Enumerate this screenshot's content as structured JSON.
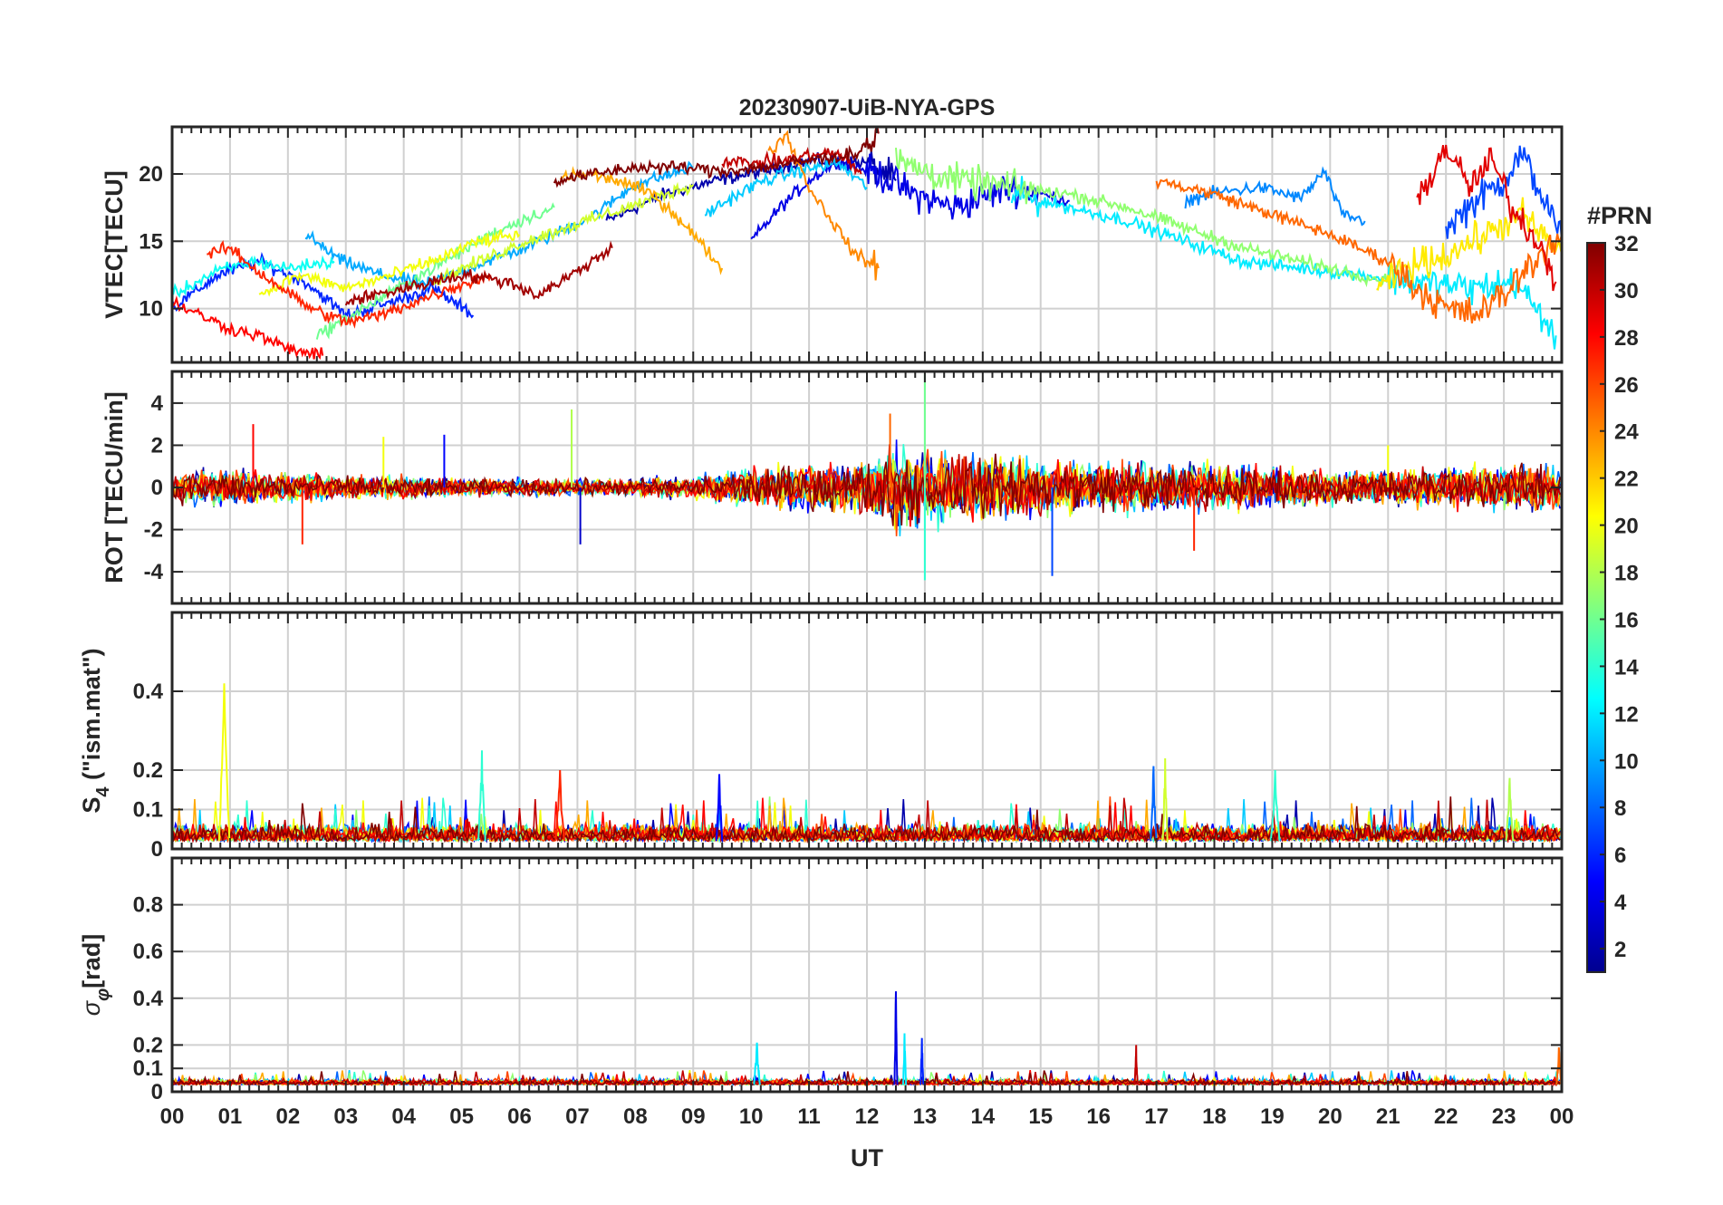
{
  "chart_data": {
    "title": "20230907-UiB-NYA-GPS",
    "type": "line",
    "xlabel": "UT",
    "x_tick_labels": [
      "00",
      "01",
      "02",
      "03",
      "04",
      "05",
      "06",
      "07",
      "08",
      "09",
      "10",
      "11",
      "12",
      "13",
      "14",
      "15",
      "16",
      "17",
      "18",
      "19",
      "20",
      "21",
      "22",
      "23",
      "00"
    ],
    "xlim": [
      0,
      24
    ],
    "grid": true,
    "colorbar": {
      "title": "#PRN",
      "range": [
        1,
        32
      ],
      "ticks": [
        2,
        4,
        6,
        8,
        10,
        12,
        14,
        16,
        18,
        20,
        22,
        24,
        26,
        28,
        30,
        32
      ],
      "colormap": "jet",
      "stops": [
        "#00008f",
        "#0000ff",
        "#0080ff",
        "#00ffff",
        "#80ff80",
        "#ffff00",
        "#ff8000",
        "#ff0000",
        "#800000"
      ]
    },
    "panels": [
      {
        "id": "vtec",
        "ylabel": "VTEC[TECU]",
        "ylim": [
          6,
          23.5
        ],
        "yticks": [
          10,
          15,
          20
        ],
        "series": [
          {
            "prn": 2,
            "x": [
              7.5,
              8.5,
              9.5,
              10.2,
              11.0,
              12.0,
              12.5
            ],
            "y": [
              16.5,
              18.5,
              19.6,
              20.2,
              21.0,
              20.8,
              19.5
            ]
          },
          {
            "prn": 4,
            "x": [
              10.0,
              10.5,
              11.0,
              11.5,
              12.2,
              12.8,
              13.5,
              14.5,
              15.5
            ],
            "y": [
              15.0,
              17.5,
              19.5,
              21.0,
              20.0,
              18.5,
              17.5,
              19.0,
              18.0
            ]
          },
          {
            "prn": 6,
            "x": [
              0.0,
              0.8,
              1.5,
              2.3,
              3.0,
              3.8,
              4.5,
              5.2
            ],
            "y": [
              10.0,
              12.5,
              13.5,
              12.0,
              9.5,
              10.5,
              11.5,
              9.5
            ]
          },
          {
            "prn": 7,
            "x": [
              22.0,
              22.5,
              23.0,
              23.3,
              23.6,
              24.0
            ],
            "y": [
              16.0,
              18.0,
              19.5,
              21.5,
              19.0,
              15.0
            ]
          },
          {
            "prn": 9,
            "x": [
              17.5,
              18.0,
              18.8,
              19.5,
              19.9,
              20.2,
              20.6
            ],
            "y": [
              18.0,
              18.6,
              19.0,
              18.2,
              20.2,
              17.0,
              16.5
            ]
          },
          {
            "prn": 10,
            "x": [
              2.3,
              2.9,
              3.6,
              4.4,
              5.1,
              5.9,
              6.6,
              7.3,
              8.0,
              9.0
            ],
            "y": [
              15.5,
              13.6,
              12.5,
              11.8,
              13.0,
              14.2,
              15.5,
              17.0,
              19.2,
              20.5
            ]
          },
          {
            "prn": 11,
            "x": [
              9.2,
              9.7,
              10.2,
              10.9,
              11.5,
              12.0
            ],
            "y": [
              17.0,
              18.3,
              19.5,
              20.3,
              20.8,
              19.0
            ]
          },
          {
            "prn": 12,
            "x": [
              14.5,
              15.5,
              16.5,
              17.5,
              18.5,
              19.5,
              20.5,
              21.5,
              22.5,
              23.2,
              23.9
            ],
            "y": [
              18.5,
              17.5,
              16.5,
              15.0,
              13.5,
              13.0,
              12.5,
              12.0,
              11.5,
              12.0,
              8.0
            ]
          },
          {
            "prn": 13,
            "x": [
              0.0,
              0.8,
              1.4,
              2.0,
              2.8
            ],
            "y": [
              11.0,
              12.8,
              13.5,
              13.0,
              13.5
            ]
          },
          {
            "prn": 16,
            "x": [
              2.5,
              3.5,
              4.5,
              5.5,
              6.0,
              6.6
            ],
            "y": [
              8.0,
              10.5,
              13.0,
              15.5,
              16.5,
              17.5
            ]
          },
          {
            "prn": 17,
            "x": [
              12.5,
              13.5,
              14.5,
              15.5,
              16.5,
              17.5,
              18.5,
              19.5,
              20.5,
              21.0
            ],
            "y": [
              21.0,
              19.5,
              19.0,
              18.5,
              17.5,
              16.0,
              14.5,
              13.5,
              12.5,
              12.0
            ]
          },
          {
            "prn": 19,
            "x": [
              4.5,
              5.3,
              6.0,
              6.8,
              7.5,
              8.2,
              9.0
            ],
            "y": [
              12.0,
              13.5,
              14.8,
              16.0,
              17.0,
              18.0,
              19.2
            ]
          },
          {
            "prn": 20,
            "x": [
              1.5,
              2.2,
              3.0,
              3.8,
              4.5,
              5.3,
              6.0
            ],
            "y": [
              11.0,
              12.5,
              11.5,
              12.5,
              13.5,
              15.0,
              15.5
            ]
          },
          {
            "prn": 21,
            "x": [
              20.8,
              21.3,
              22.0,
              22.7,
              23.3,
              24.0
            ],
            "y": [
              11.5,
              13.0,
              14.0,
              15.5,
              17.0,
              14.0
            ]
          },
          {
            "prn": 23,
            "x": [
              6.7,
              7.2,
              7.7,
              8.3,
              8.8,
              9.2,
              9.5
            ],
            "y": [
              19.8,
              20.0,
              19.5,
              18.5,
              16.5,
              14.5,
              13.0
            ]
          },
          {
            "prn": 24,
            "x": [
              10.3,
              10.6,
              11.0,
              11.4,
              11.8,
              12.2
            ],
            "y": [
              21.5,
              23.0,
              19.0,
              16.5,
              14.0,
              13.0
            ]
          },
          {
            "prn": 25,
            "x": [
              17.0,
              18.0,
              19.0,
              20.0,
              21.0,
              21.5,
              22.0,
              22.5,
              23.0,
              23.5,
              24.0
            ],
            "y": [
              19.5,
              18.5,
              17.0,
              15.5,
              13.5,
              11.5,
              10.0,
              9.5,
              11.0,
              13.5,
              15.5
            ]
          },
          {
            "prn": 27,
            "x": [
              0.6,
              1.0,
              1.4,
              1.9,
              2.4,
              3.0,
              3.6,
              4.2,
              4.8,
              5.5
            ],
            "y": [
              14.0,
              14.5,
              13.0,
              11.5,
              10.0,
              9.0,
              9.5,
              10.5,
              11.5,
              12.5
            ]
          },
          {
            "prn": 28,
            "x": [
              0.0,
              0.5,
              1.0,
              1.5,
              2.0,
              2.6
            ],
            "y": [
              10.5,
              9.5,
              8.5,
              8.0,
              7.0,
              6.5
            ]
          },
          {
            "prn": 29,
            "x": [
              21.5,
              22.0,
              22.4,
              22.8,
              23.2,
              23.6,
              23.9
            ],
            "y": [
              18.0,
              22.0,
              19.0,
              21.0,
              17.0,
              15.0,
              12.0
            ]
          },
          {
            "prn": 30,
            "x": [
              9.5,
              10.0,
              10.6,
              11.1,
              11.5,
              11.9
            ],
            "y": [
              21.0,
              20.8,
              21.0,
              21.5,
              21.5,
              20.0
            ]
          },
          {
            "prn": 31,
            "x": [
              3.0,
              4.0,
              5.0,
              5.8,
              6.3,
              6.9,
              7.6
            ],
            "y": [
              10.5,
              11.5,
              12.5,
              12.0,
              11.0,
              12.5,
              14.5
            ]
          },
          {
            "prn": 32,
            "x": [
              6.6,
              7.3,
              8.0,
              8.8,
              9.5,
              10.2,
              11.0,
              11.8,
              12.2
            ],
            "y": [
              19.5,
              20.0,
              20.5,
              20.5,
              20.2,
              20.5,
              21.0,
              21.5,
              23.0
            ]
          }
        ]
      },
      {
        "id": "rot",
        "ylabel": "ROT [TECU/min]",
        "ylim": [
          -5.5,
          5.5
        ],
        "yticks": [
          -4,
          -2,
          0,
          2,
          4
        ],
        "noise": {
          "x_knots": [
            0,
            1,
            2,
            3,
            4,
            5,
            6,
            7,
            8,
            9,
            10,
            11,
            12,
            12.5,
            13,
            14,
            15,
            16,
            17,
            18,
            19,
            20,
            21,
            22,
            23,
            24
          ],
          "amplitude": [
            0.6,
            0.6,
            0.5,
            0.4,
            0.4,
            0.3,
            0.3,
            0.3,
            0.3,
            0.4,
            0.7,
            0.8,
            0.9,
            1.6,
            1.3,
            1.1,
            1.0,
            0.9,
            0.8,
            0.8,
            0.7,
            0.6,
            0.6,
            0.7,
            0.8,
            0.8
          ]
        },
        "peaks": [
          {
            "prn": 5,
            "x": 4.7,
            "y": 2.5
          },
          {
            "prn": 18,
            "x": 6.9,
            "y": 3.7
          },
          {
            "prn": 3,
            "x": 7.05,
            "y": -2.7
          },
          {
            "prn": 16,
            "x": 13.0,
            "y": 5.4
          },
          {
            "prn": 14,
            "x": 13.0,
            "y": -4.4
          },
          {
            "prn": 7,
            "x": 15.2,
            "y": -4.2
          },
          {
            "prn": 20,
            "x": 3.65,
            "y": 2.4
          },
          {
            "prn": 20,
            "x": 21.0,
            "y": 2.0
          },
          {
            "prn": 28,
            "x": 1.4,
            "y": 3.0
          },
          {
            "prn": 25,
            "x": 12.4,
            "y": 3.5
          },
          {
            "prn": 27,
            "x": 2.25,
            "y": -2.7
          },
          {
            "prn": 27,
            "x": 17.65,
            "y": -3.0
          }
        ]
      },
      {
        "id": "s4",
        "ylabel": "S4 (\"ism.mat\")",
        "ylabel_main": "S",
        "ylabel_sub": "4",
        "ylabel_rest": " (\"ism.mat\")",
        "ylim": [
          0,
          0.6
        ],
        "yticks": [
          0,
          0.1,
          0.2,
          0.4
        ],
        "ytick_labels": [
          "0",
          "0.1",
          "0.2",
          "0.4"
        ],
        "base": 0.02,
        "noise": 0.045,
        "peaks": [
          {
            "prn": 20,
            "x": 0.9,
            "y": 0.42,
            "w": 0.18
          },
          {
            "prn": 14,
            "x": 5.35,
            "y": 0.25,
            "w": 0.12
          },
          {
            "prn": 27,
            "x": 6.7,
            "y": 0.2,
            "w": 0.15
          },
          {
            "prn": 5,
            "x": 9.45,
            "y": 0.19,
            "w": 0.1
          },
          {
            "prn": 8,
            "x": 16.95,
            "y": 0.21,
            "w": 0.1
          },
          {
            "prn": 19,
            "x": 17.15,
            "y": 0.23,
            "w": 0.08
          },
          {
            "prn": 14,
            "x": 19.05,
            "y": 0.2,
            "w": 0.15
          },
          {
            "prn": 18,
            "x": 23.1,
            "y": 0.18,
            "w": 0.12
          }
        ]
      },
      {
        "id": "sigma",
        "ylabel": "σφ[rad]",
        "ylabel_main": "σ",
        "ylabel_sub": "φ",
        "ylabel_rest": "[rad]",
        "ylim": [
          0,
          1.0
        ],
        "yticks": [
          0,
          0.1,
          0.2,
          0.4,
          0.6,
          0.8
        ],
        "ytick_labels": [
          "0",
          "0.1",
          "0.2",
          "0.4",
          "0.6",
          "0.8"
        ],
        "base": 0.03,
        "noise": 0.025,
        "peaks": [
          {
            "prn": 4,
            "x": 12.5,
            "y": 0.43,
            "w": 0.05
          },
          {
            "prn": 12,
            "x": 12.65,
            "y": 0.25,
            "w": 0.05
          },
          {
            "prn": 6,
            "x": 12.95,
            "y": 0.23,
            "w": 0.05
          },
          {
            "prn": 12,
            "x": 10.1,
            "y": 0.21,
            "w": 0.1
          },
          {
            "prn": 30,
            "x": 16.65,
            "y": 0.2,
            "w": 0.05
          },
          {
            "prn": 25,
            "x": 23.95,
            "y": 0.19,
            "w": 0.08
          }
        ]
      }
    ]
  }
}
